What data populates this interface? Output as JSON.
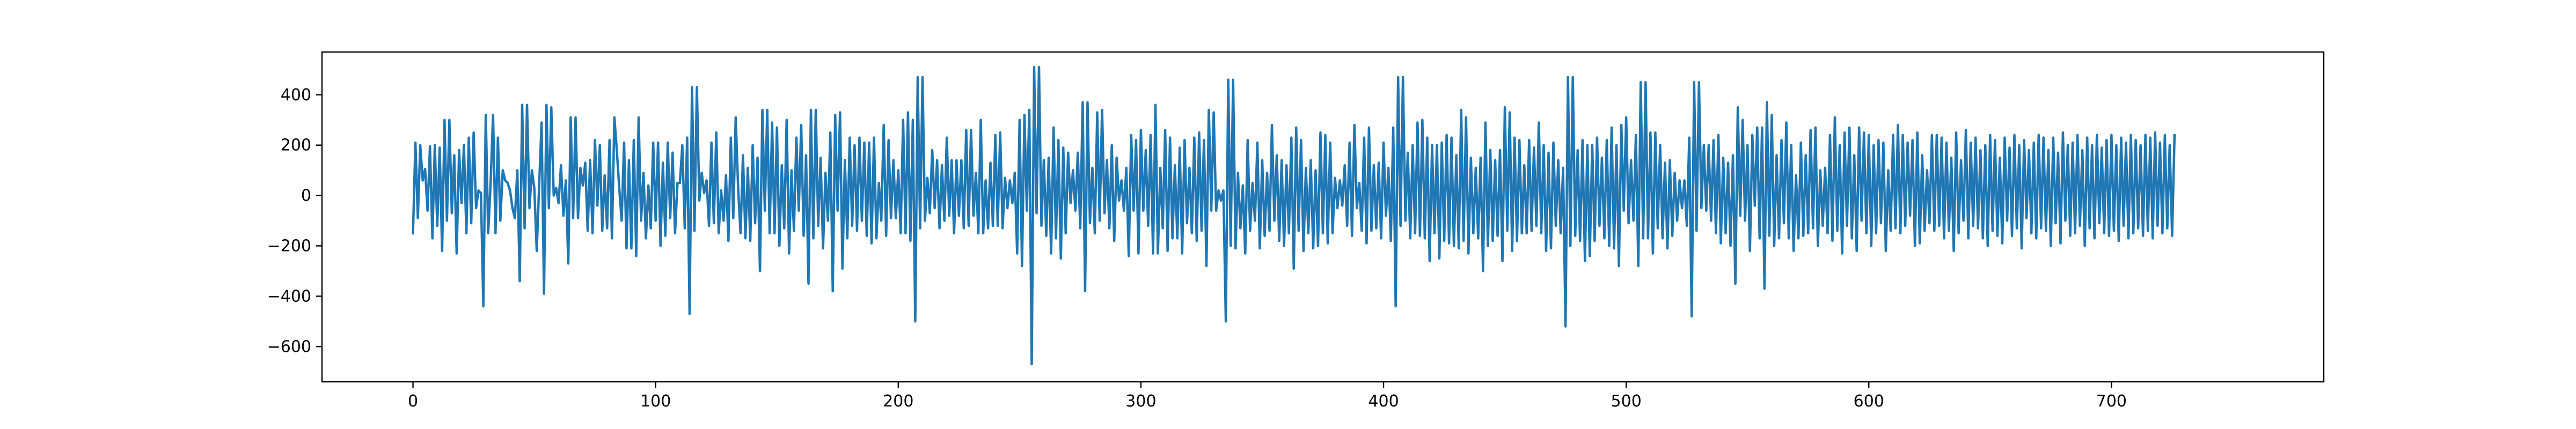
{
  "chart_data": {
    "type": "line",
    "title": "",
    "xlabel": "",
    "ylabel": "",
    "xlim": [
      -37.5,
      787.5
    ],
    "ylim": [
      -740,
      570
    ],
    "x_ticks": [
      0,
      100,
      200,
      300,
      400,
      500,
      600,
      700
    ],
    "x_tick_labels": [
      "0",
      "100",
      "200",
      "300",
      "400",
      "500",
      "600",
      "700"
    ],
    "y_ticks": [
      -600,
      -400,
      -200,
      0,
      200,
      400
    ],
    "y_tick_labels": [
      "−600",
      "−400",
      "−200",
      "0",
      "200",
      "400"
    ],
    "grid": false,
    "legend": "none",
    "x": {
      "start": 0,
      "end": 749,
      "step": 1
    },
    "series": [
      {
        "color": "#1f77b4",
        "values": [
          -150,
          210,
          -90,
          200,
          60,
          105,
          -60,
          195,
          -170,
          200,
          -120,
          190,
          -220,
          300,
          -100,
          300,
          -70,
          160,
          -230,
          180,
          -30,
          200,
          -150,
          230,
          -110,
          250,
          -50,
          20,
          10,
          -440,
          320,
          -150,
          50,
          320,
          -150,
          230,
          -100,
          100,
          60,
          50,
          20,
          -50,
          -90,
          100,
          -340,
          360,
          -130,
          360,
          -50,
          100,
          30,
          -220,
          40,
          290,
          -390,
          360,
          -50,
          350,
          0,
          30,
          -30,
          120,
          -80,
          60,
          -270,
          310,
          -90,
          310,
          -90,
          110,
          40,
          130,
          -140,
          140,
          -150,
          220,
          -40,
          200,
          -140,
          80,
          -130,
          220,
          -170,
          310,
          180,
          30,
          -100,
          210,
          -210,
          140,
          -210,
          220,
          -240,
          310,
          -100,
          90,
          -170,
          40,
          -130,
          210,
          -100,
          210,
          -200,
          130,
          -160,
          210,
          -90,
          170,
          -150,
          50,
          50,
          200,
          -130,
          230,
          -470,
          430,
          -140,
          430,
          -20,
          90,
          10,
          60,
          -120,
          210,
          -110,
          250,
          -150,
          20,
          -100,
          80,
          -180,
          230,
          -90,
          310,
          30,
          -150,
          160,
          -170,
          110,
          -180,
          200,
          -110,
          150,
          -300,
          340,
          -60,
          340,
          -150,
          290,
          -150,
          270,
          -200,
          120,
          -130,
          300,
          -230,
          100,
          -140,
          230,
          -60,
          280,
          -160,
          160,
          -350,
          340,
          -170,
          340,
          -120,
          150,
          -210,
          90,
          -100,
          250,
          -380,
          320,
          -60,
          330,
          -290,
          140,
          -170,
          230,
          -120,
          200,
          -140,
          230,
          -100,
          210,
          -160,
          210,
          -190,
          230,
          -170,
          50,
          -100,
          280,
          -160,
          220,
          -90,
          140,
          -90,
          100,
          -150,
          300,
          -150,
          330,
          -180,
          300,
          -500,
          470,
          -130,
          470,
          -100,
          70,
          -70,
          180,
          -50,
          140,
          -130,
          120,
          -100,
          230,
          -80,
          140,
          -150,
          140,
          -80,
          140,
          -130,
          260,
          -120,
          260,
          -80,
          90,
          -150,
          300,
          -150,
          60,
          -130,
          130,
          -120,
          240,
          -120,
          250,
          -130,
          70,
          -50,
          60,
          -30,
          90,
          -230,
          300,
          -280,
          320,
          -60,
          340,
          -670,
          510,
          -70,
          510,
          -120,
          140,
          -160,
          150,
          -230,
          270,
          -170,
          220,
          -250,
          190,
          -150,
          170,
          -30,
          100,
          -60,
          170,
          -130,
          370,
          -380,
          370,
          -110,
          110,
          -150,
          330,
          -100,
          340,
          -70,
          140,
          -130,
          200,
          -180,
          150,
          -20,
          60,
          -60,
          110,
          -240,
          240,
          -60,
          220,
          -230,
          260,
          -60,
          180,
          -120,
          240,
          -230,
          360,
          -230,
          110,
          -130,
          260,
          -220,
          230,
          -170,
          120,
          -170,
          190,
          -230,
          220,
          -110,
          110,
          -150,
          230,
          -180,
          250,
          -140,
          220,
          -280,
          340,
          -60,
          330,
          -60,
          20,
          -20,
          20,
          -500,
          460,
          -200,
          460,
          -210,
          90,
          -130,
          40,
          -230,
          220,
          -140,
          50,
          -100,
          210,
          -210,
          140,
          -160,
          90,
          -140,
          280,
          -100,
          160,
          -180,
          140,
          -200,
          120,
          -150,
          230,
          -290,
          270,
          -140,
          220,
          -220,
          110,
          -150,
          140,
          -210,
          100,
          -200,
          250,
          -150,
          240,
          -190,
          210,
          -150,
          70,
          -50,
          60,
          -40,
          120,
          -120,
          210,
          -160,
          280,
          -50,
          50,
          -140,
          230,
          -190,
          270,
          -140,
          120,
          -130,
          130,
          -170,
          210,
          -80,
          110,
          -180,
          270,
          -440,
          470,
          -120,
          470,
          -100,
          170,
          -170,
          200,
          -150,
          290,
          -160,
          300,
          -170,
          230,
          -260,
          200,
          -150,
          200,
          -250,
          210,
          -180,
          240,
          -190,
          230,
          -200,
          160,
          -210,
          340,
          -180,
          310,
          -230,
          150,
          -150,
          110,
          -170,
          150,
          -300,
          290,
          -200,
          180,
          -180,
          140,
          -160,
          180,
          -260,
          350,
          -140,
          330,
          -220,
          230,
          -180,
          220,
          -150,
          120,
          -150,
          220,
          -140,
          190,
          -120,
          290,
          -150,
          200,
          -220,
          170,
          -210,
          210,
          -120,
          140,
          -150,
          110,
          -520,
          470,
          -200,
          470,
          -160,
          180,
          -180,
          220,
          -260,
          200,
          -240,
          200,
          -180,
          230,
          -120,
          150,
          -170,
          220,
          -200,
          270,
          -210,
          200,
          -280,
          280,
          -60,
          310,
          -110,
          140,
          -100,
          240,
          -280,
          450,
          -170,
          450,
          -170,
          250,
          -230,
          250,
          -130,
          200,
          -170,
          130,
          -210,
          140,
          -160,
          90,
          -100,
          60,
          -50,
          60,
          -120,
          230,
          -480,
          450,
          -140,
          450,
          -50,
          200,
          -60,
          200,
          -100,
          220,
          -150,
          240,
          -190,
          150,
          -150,
          130,
          -200,
          160,
          -350,
          350,
          -80,
          300,
          -100,
          200,
          -220,
          240,
          -40,
          270,
          -170,
          270,
          -370,
          370,
          -160,
          320,
          -200,
          160,
          -170,
          220,
          -110,
          290,
          -170,
          200,
          -220,
          80,
          -170,
          210,
          -160,
          160,
          -150,
          260,
          -130,
          270,
          -200,
          100,
          -120,
          110,
          -150,
          240,
          -180,
          310,
          -140,
          200,
          -230,
          250,
          -120,
          270,
          -170,
          160,
          -220,
          270,
          -100,
          250,
          -150,
          240,
          -200,
          200,
          -150,
          220,
          -110,
          210,
          -220,
          100,
          -140,
          240,
          -130,
          280,
          -150,
          240,
          -120,
          210,
          -80,
          220,
          -200,
          250,
          -190,
          160,
          -140,
          100,
          -110,
          240,
          -140,
          240,
          -120,
          230,
          -170,
          210,
          -140,
          150,
          -220,
          250,
          -150,
          140,
          -100,
          260,
          -170,
          210,
          -120,
          230,
          -130,
          180,
          -170,
          200,
          -200,
          240,
          -140,
          220,
          -160,
          150,
          -190,
          230,
          -100,
          190,
          -160,
          240,
          -130,
          200,
          -210,
          220,
          -90,
          180,
          -150,
          210,
          -170,
          240,
          -130,
          230,
          -140,
          180,
          -200,
          230,
          -110,
          170,
          -190,
          250,
          -100,
          200,
          -160,
          210,
          -150,
          240,
          -120,
          180,
          -200,
          230,
          -130,
          200,
          -170,
          240,
          -110,
          190,
          -150,
          220,
          -160,
          240,
          -140,
          200,
          -180,
          230,
          -120,
          210,
          -170,
          240,
          -150,
          220,
          -130,
          200,
          -160,
          240,
          -140,
          230,
          -170,
          250,
          -120,
          210,
          -150,
          240,
          -130,
          200,
          -160,
          240
        ]
      }
    ]
  }
}
